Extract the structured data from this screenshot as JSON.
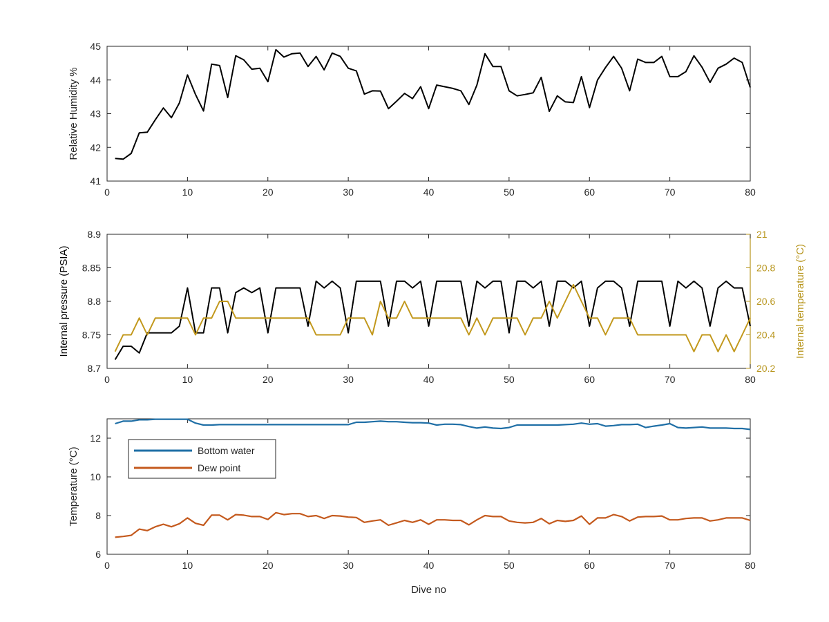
{
  "figure": {
    "xlabel": "Dive no"
  },
  "colors": {
    "black_series": "#000000",
    "internal_temperature": "#C2981C",
    "internal_temperature_axis": "#B8961E",
    "bottom_water": "#1F6FA6",
    "dew_point": "#C45A1E",
    "axes": "#262626"
  },
  "chart_data": [
    {
      "type": "line",
      "xlabel": "",
      "ylabel": "Relative Humidity %",
      "xlim": [
        0,
        80
      ],
      "ylim": [
        41,
        45
      ],
      "xticks": [
        "0",
        "10",
        "20",
        "30",
        "40",
        "50",
        "60",
        "70",
        "80"
      ],
      "yticks": [
        "41",
        "42",
        "43",
        "44",
        "45"
      ],
      "grid": false,
      "x": [
        1,
        2,
        3,
        4,
        5,
        6,
        7,
        8,
        9,
        10,
        11,
        12,
        13,
        14,
        15,
        16,
        17,
        18,
        19,
        20,
        21,
        22,
        23,
        24,
        25,
        26,
        27,
        28,
        29,
        30,
        31,
        32,
        33,
        34,
        35,
        36,
        37,
        38,
        39,
        40,
        41,
        42,
        43,
        44,
        45,
        46,
        47,
        48,
        49,
        50,
        51,
        52,
        53,
        54,
        55,
        56,
        57,
        58,
        59,
        60,
        61,
        62,
        63,
        64,
        65,
        66,
        67,
        68,
        69,
        70,
        71,
        72,
        73,
        74,
        75,
        76,
        77,
        78,
        79,
        80
      ],
      "series": [
        {
          "values": [
            41.67,
            41.65,
            41.82,
            42.43,
            42.45,
            42.82,
            43.17,
            42.88,
            43.32,
            44.15,
            43.57,
            43.08,
            44.47,
            44.43,
            43.48,
            44.72,
            44.6,
            44.32,
            44.35,
            43.95,
            44.9,
            44.68,
            44.78,
            44.8,
            44.4,
            44.7,
            44.3,
            44.8,
            44.7,
            44.35,
            44.27,
            43.58,
            43.68,
            43.67,
            43.15,
            43.37,
            43.6,
            43.45,
            43.8,
            43.15,
            43.85,
            43.8,
            43.75,
            43.68,
            43.27,
            43.85,
            44.78,
            44.4,
            44.4,
            43.68,
            43.53,
            43.57,
            43.62,
            44.08,
            43.07,
            43.53,
            43.35,
            43.33,
            44.1,
            43.18,
            44.0,
            44.37,
            44.7,
            44.35,
            43.68,
            44.62,
            44.52,
            44.52,
            44.7,
            44.1,
            44.1,
            44.25,
            44.72,
            44.38,
            43.93,
            44.35,
            44.47,
            44.65,
            44.52,
            43.78
          ]
        }
      ]
    },
    {
      "type": "line",
      "xlabel": "",
      "ylabel": "Internal pressure (PSIA)",
      "ylabel_right": "Internal temperature (°C)",
      "xlim": [
        0,
        80
      ],
      "ylim": [
        8.7,
        8.9
      ],
      "ylim_right": [
        20.2,
        21
      ],
      "xticks": [
        "0",
        "10",
        "20",
        "30",
        "40",
        "50",
        "60",
        "70",
        "80"
      ],
      "yticks": [
        "8.7",
        "8.75",
        "8.8",
        "8.85",
        "8.9"
      ],
      "yticks_right": [
        "20.2",
        "20.4",
        "20.6",
        "20.8",
        "21"
      ],
      "grid": false,
      "x": [
        1,
        2,
        3,
        4,
        5,
        6,
        7,
        8,
        9,
        10,
        11,
        12,
        13,
        14,
        15,
        16,
        17,
        18,
        19,
        20,
        21,
        22,
        23,
        24,
        25,
        26,
        27,
        28,
        29,
        30,
        31,
        32,
        33,
        34,
        35,
        36,
        37,
        38,
        39,
        40,
        41,
        42,
        43,
        44,
        45,
        46,
        47,
        48,
        49,
        50,
        51,
        52,
        53,
        54,
        55,
        56,
        57,
        58,
        59,
        60,
        61,
        62,
        63,
        64,
        65,
        66,
        67,
        68,
        69,
        70,
        71,
        72,
        73,
        74,
        75,
        76,
        77,
        78,
        79,
        80
      ],
      "series": [
        {
          "axis": "left",
          "values": [
            8.713,
            8.733,
            8.733,
            8.723,
            8.753,
            8.753,
            8.753,
            8.753,
            8.763,
            8.82,
            8.753,
            8.753,
            8.82,
            8.82,
            8.753,
            8.813,
            8.82,
            8.813,
            8.82,
            8.753,
            8.82,
            8.82,
            8.82,
            8.82,
            8.763,
            8.83,
            8.82,
            8.83,
            8.82,
            8.753,
            8.83,
            8.83,
            8.83,
            8.83,
            8.763,
            8.83,
            8.83,
            8.82,
            8.83,
            8.763,
            8.83,
            8.83,
            8.83,
            8.83,
            8.763,
            8.83,
            8.82,
            8.83,
            8.83,
            8.753,
            8.83,
            8.83,
            8.82,
            8.83,
            8.763,
            8.83,
            8.83,
            8.82,
            8.83,
            8.763,
            8.82,
            8.83,
            8.83,
            8.82,
            8.763,
            8.83,
            8.83,
            8.83,
            8.83,
            8.763,
            8.83,
            8.82,
            8.83,
            8.82,
            8.763,
            8.82,
            8.83,
            8.82,
            8.82,
            8.763
          ]
        },
        {
          "axis": "right",
          "values": [
            20.3,
            20.4,
            20.4,
            20.5,
            20.4,
            20.5,
            20.5,
            20.5,
            20.5,
            20.5,
            20.4,
            20.5,
            20.5,
            20.6,
            20.6,
            20.5,
            20.5,
            20.5,
            20.5,
            20.5,
            20.5,
            20.5,
            20.5,
            20.5,
            20.5,
            20.4,
            20.4,
            20.4,
            20.4,
            20.5,
            20.5,
            20.5,
            20.4,
            20.6,
            20.5,
            20.5,
            20.6,
            20.5,
            20.5,
            20.5,
            20.5,
            20.5,
            20.5,
            20.5,
            20.4,
            20.5,
            20.4,
            20.5,
            20.5,
            20.5,
            20.5,
            20.4,
            20.5,
            20.5,
            20.6,
            20.5,
            20.6,
            20.7,
            20.6,
            20.5,
            20.5,
            20.4,
            20.5,
            20.5,
            20.5,
            20.4,
            20.4,
            20.4,
            20.4,
            20.4,
            20.4,
            20.4,
            20.3,
            20.4,
            20.4,
            20.3,
            20.4,
            20.3,
            20.4,
            20.5
          ]
        }
      ]
    },
    {
      "type": "line",
      "xlabel": "Dive no",
      "ylabel": "Temperature (°C)",
      "xlim": [
        0,
        80
      ],
      "ylim": [
        6,
        13
      ],
      "xticks": [
        "0",
        "10",
        "20",
        "30",
        "40",
        "50",
        "60",
        "70",
        "80"
      ],
      "yticks": [
        "6",
        "8",
        "10",
        "12"
      ],
      "grid": false,
      "legend_position": "top-left",
      "x": [
        1,
        2,
        3,
        4,
        5,
        6,
        7,
        8,
        9,
        10,
        11,
        12,
        13,
        14,
        15,
        16,
        17,
        18,
        19,
        20,
        21,
        22,
        23,
        24,
        25,
        26,
        27,
        28,
        29,
        30,
        31,
        32,
        33,
        34,
        35,
        36,
        37,
        38,
        39,
        40,
        41,
        42,
        43,
        44,
        45,
        46,
        47,
        48,
        49,
        50,
        51,
        52,
        53,
        54,
        55,
        56,
        57,
        58,
        59,
        60,
        61,
        62,
        63,
        64,
        65,
        66,
        67,
        68,
        69,
        70,
        71,
        72,
        73,
        74,
        75,
        76,
        77,
        78,
        79,
        80
      ],
      "series": [
        {
          "name": "Bottom water",
          "values": [
            12.75,
            12.88,
            12.88,
            12.95,
            12.95,
            12.98,
            12.98,
            12.98,
            12.98,
            12.98,
            12.78,
            12.68,
            12.68,
            12.7,
            12.7,
            12.7,
            12.7,
            12.7,
            12.7,
            12.7,
            12.7,
            12.7,
            12.7,
            12.7,
            12.7,
            12.7,
            12.7,
            12.7,
            12.7,
            12.7,
            12.82,
            12.82,
            12.85,
            12.88,
            12.85,
            12.85,
            12.82,
            12.8,
            12.8,
            12.78,
            12.68,
            12.72,
            12.72,
            12.7,
            12.6,
            12.52,
            12.58,
            12.52,
            12.5,
            12.55,
            12.68,
            12.68,
            12.68,
            12.68,
            12.68,
            12.68,
            12.7,
            12.72,
            12.78,
            12.72,
            12.75,
            12.62,
            12.65,
            12.7,
            12.7,
            12.72,
            12.55,
            12.62,
            12.68,
            12.75,
            12.55,
            12.52,
            12.55,
            12.58,
            12.52,
            12.52,
            12.52,
            12.5,
            12.5,
            12.45
          ]
        },
        {
          "name": "Dew point",
          "values": [
            6.88,
            6.92,
            6.98,
            7.3,
            7.22,
            7.42,
            7.55,
            7.42,
            7.58,
            7.88,
            7.6,
            7.5,
            8.02,
            8.02,
            7.78,
            8.05,
            8.02,
            7.95,
            7.95,
            7.8,
            8.15,
            8.05,
            8.1,
            8.1,
            7.95,
            8.0,
            7.85,
            8.0,
            7.98,
            7.92,
            7.9,
            7.65,
            7.72,
            7.78,
            7.5,
            7.62,
            7.75,
            7.65,
            7.78,
            7.55,
            7.78,
            7.78,
            7.75,
            7.75,
            7.52,
            7.78,
            8.0,
            7.95,
            7.95,
            7.72,
            7.65,
            7.62,
            7.65,
            7.85,
            7.58,
            7.75,
            7.7,
            7.75,
            7.98,
            7.55,
            7.88,
            7.88,
            8.05,
            7.95,
            7.72,
            7.92,
            7.95,
            7.95,
            7.98,
            7.78,
            7.78,
            7.85,
            7.88,
            7.88,
            7.72,
            7.78,
            7.88,
            7.88,
            7.88,
            7.75
          ]
        }
      ]
    }
  ]
}
